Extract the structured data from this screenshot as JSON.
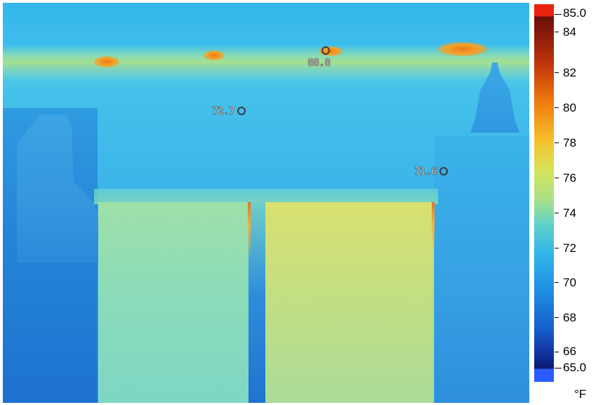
{
  "thermal_image": {
    "spot_readings": [
      {
        "label": "spot-1",
        "value": "88.8"
      },
      {
        "label": "spot-2",
        "value": "72.7"
      },
      {
        "label": "spot-3",
        "value": "71.6"
      }
    ],
    "colors": {
      "hot": "#ee7a16",
      "warm": "#d9e070",
      "neutral": "#3aaee8",
      "cool": "#1d72cf"
    }
  },
  "color_scale": {
    "max_label": "85.0",
    "min_label": "65.0",
    "unit": "°F",
    "ticks": [
      "84",
      "82",
      "80",
      "78",
      "76",
      "74",
      "72",
      "70",
      "68",
      "66"
    ]
  }
}
